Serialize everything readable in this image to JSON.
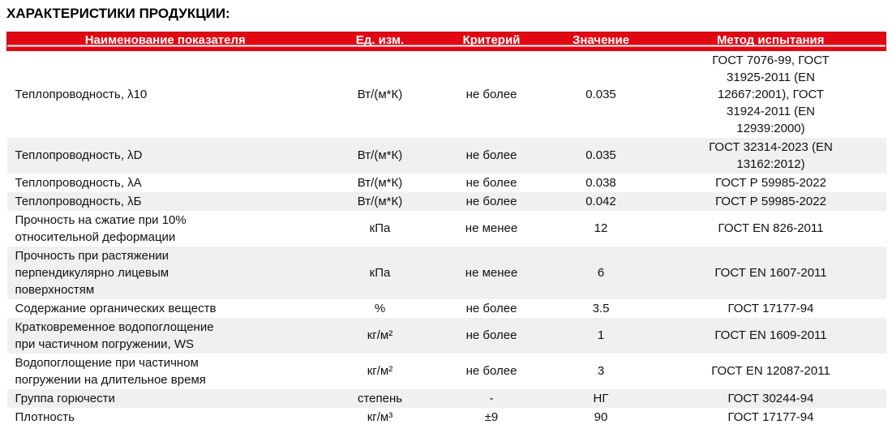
{
  "page": {
    "title": "ХАРАКТЕРИСТИКИ ПРОДУКЦИИ:"
  },
  "colors": {
    "header_bg": "#e30613",
    "header_text": "#ffffff",
    "header_underline": "#ffffff",
    "row_alt_bg": "#f0f0f0",
    "text": "#111111"
  },
  "table": {
    "columns": [
      "Наименование показателя",
      "Ед. изм.",
      "Критерий",
      "Значение",
      "Метод испытания"
    ],
    "rows": [
      {
        "name": "Теплопроводность, λ10",
        "unit": "Вт/(м*К)",
        "criterion": "не более",
        "value": "0.035",
        "method": "ГОСТ 7076-99, ГОСТ\n31925-2011 (EN\n12667:2001), ГОСТ\n31924-2011 (EN\n12939:2000)"
      },
      {
        "name": "Теплопроводность, λD",
        "unit": "Вт/(м*К)",
        "criterion": "не более",
        "value": "0.035",
        "method": "ГОСТ 32314-2023 (EN\n13162:2012)"
      },
      {
        "name": "Теплопроводность, λА",
        "unit": "Вт/(м*К)",
        "criterion": "не более",
        "value": "0.038",
        "method": "ГОСТ Р 59985-2022"
      },
      {
        "name": "Теплопроводность, λБ",
        "unit": "Вт/(м*К)",
        "criterion": "не более",
        "value": "0.042",
        "method": "ГОСТ Р 59985-2022"
      },
      {
        "name": "Прочность на сжатие при 10%\nотносительной деформации",
        "unit": "кПа",
        "criterion": "не менее",
        "value": "12",
        "method": "ГОСТ EN 826-2011"
      },
      {
        "name": "Прочность при растяжении\nперпендикулярно лицевым\nповерхностям",
        "unit": "кПа",
        "criterion": "не менее",
        "value": "6",
        "method": "ГОСТ EN 1607-2011"
      },
      {
        "name": "Содержание органических веществ",
        "unit": "%",
        "criterion": "не более",
        "value": "3.5",
        "method": "ГОСТ 17177-94"
      },
      {
        "name": "Кратковременное водопоглощение\nпри частичном погружении, WS",
        "unit": "кг/м²",
        "criterion": "не более",
        "value": "1",
        "method": "ГОСТ EN 1609-2011"
      },
      {
        "name": "Водопоглощение при частичном\nпогружении на длительное время",
        "unit": "кг/м²",
        "criterion": "не более",
        "value": "3",
        "method": "ГОСТ EN 12087-2011"
      },
      {
        "name": "Группа горючести",
        "unit": "степень",
        "criterion": "-",
        "value": "НГ",
        "method": "ГОСТ 30244-94"
      },
      {
        "name": "Плотность",
        "unit": "кг/м³",
        "criterion": "±9",
        "value": "90",
        "method": "ГОСТ 17177-94"
      }
    ]
  }
}
